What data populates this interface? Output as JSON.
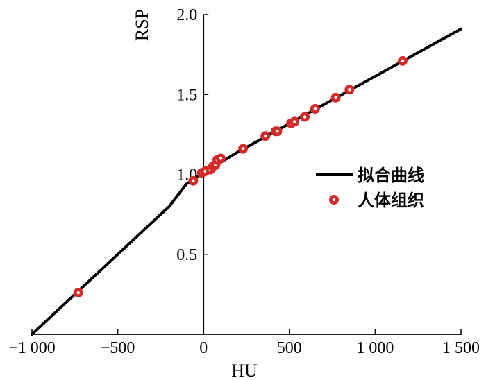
{
  "chart_data": {
    "type": "scatter",
    "title": "",
    "xlabel": "HU",
    "ylabel": "RSP",
    "xlim": [
      -1000,
      1500
    ],
    "ylim": [
      0,
      2.0
    ],
    "grid": false,
    "legend_position": "right",
    "x_ticks": [
      {
        "value": -1000,
        "label": "−1 000"
      },
      {
        "value": -500,
        "label": "−500"
      },
      {
        "value": 0,
        "label": "0"
      },
      {
        "value": 500,
        "label": "500"
      },
      {
        "value": 1000,
        "label": "1 000"
      },
      {
        "value": 1500,
        "label": "1 500"
      }
    ],
    "y_ticks": [
      {
        "value": 0.5,
        "label": "0.5"
      },
      {
        "value": 1.0,
        "label": "1.0"
      },
      {
        "value": 1.5,
        "label": "1.5"
      },
      {
        "value": 2.0,
        "label": "2.0"
      }
    ],
    "series": [
      {
        "name": "拟合曲线",
        "kind": "line",
        "color": "#000000",
        "points": [
          [
            -1000,
            0.0
          ],
          [
            -200,
            0.8
          ],
          [
            -100,
            0.94
          ],
          [
            0,
            1.01
          ],
          [
            200,
            1.14
          ],
          [
            1500,
            1.91
          ]
        ]
      },
      {
        "name": "人体组织",
        "kind": "marker",
        "color": "#d42a2a",
        "points": [
          [
            -730,
            0.26
          ],
          [
            -60,
            0.96
          ],
          [
            -10,
            1.01
          ],
          [
            10,
            1.02
          ],
          [
            40,
            1.03
          ],
          [
            55,
            1.05
          ],
          [
            70,
            1.06
          ],
          [
            80,
            1.09
          ],
          [
            100,
            1.1
          ],
          [
            230,
            1.16
          ],
          [
            360,
            1.24
          ],
          [
            420,
            1.27
          ],
          [
            430,
            1.27
          ],
          [
            510,
            1.32
          ],
          [
            530,
            1.33
          ],
          [
            590,
            1.36
          ],
          [
            650,
            1.41
          ],
          [
            770,
            1.48
          ],
          [
            850,
            1.53
          ],
          [
            1160,
            1.71
          ]
        ]
      }
    ]
  }
}
